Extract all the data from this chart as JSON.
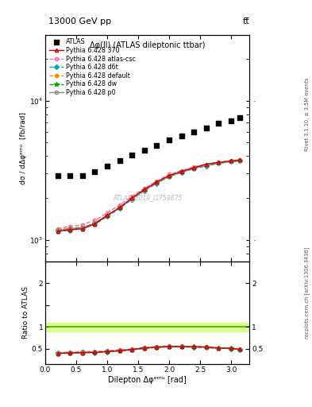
{
  "title_top": "13000 GeV pp",
  "title_right": "tt̅",
  "plot_title": "Δφ(ll) (ATLAS dileptonic ttbar)",
  "xlabel": "Dilepton Δφᵉᵐᵘ [rad]",
  "ylabel": "dσ / dΔφᵉᵐᵘ  [fb/rad]",
  "ylabel_ratio": "Ratio to ATLAS",
  "right_label_top": "Rivet 3.1.10, ≥ 3.5M events",
  "right_label_bottom": "mcplots.cern.ch [arXiv:1306.3436]",
  "watermark": "ATLAS_2019_I1759875",
  "atlas_x": [
    0.2,
    0.4,
    0.6,
    0.8,
    1.0,
    1.2,
    1.4,
    1.6,
    1.8,
    2.0,
    2.2,
    2.4,
    2.6,
    2.8,
    3.0,
    3.14
  ],
  "atlas_y": [
    2900,
    2900,
    2900,
    3100,
    3400,
    3700,
    4100,
    4400,
    4800,
    5200,
    5600,
    6000,
    6400,
    6900,
    7200,
    7600
  ],
  "py370_y": [
    1150,
    1180,
    1200,
    1300,
    1500,
    1700,
    2000,
    2300,
    2600,
    2900,
    3100,
    3300,
    3500,
    3600,
    3700,
    3750
  ],
  "py_atlas_y": [
    1200,
    1250,
    1280,
    1380,
    1560,
    1780,
    2050,
    2350,
    2650,
    2950,
    3150,
    3350,
    3500,
    3620,
    3700,
    3750
  ],
  "py_d6t_y": [
    1150,
    1170,
    1200,
    1290,
    1470,
    1680,
    1950,
    2250,
    2550,
    2850,
    3050,
    3250,
    3400,
    3550,
    3650,
    3700
  ],
  "py_default_y": [
    1180,
    1210,
    1230,
    1320,
    1500,
    1710,
    1980,
    2280,
    2580,
    2880,
    3080,
    3280,
    3430,
    3570,
    3660,
    3710
  ],
  "py_dw_y": [
    1160,
    1190,
    1215,
    1305,
    1490,
    1700,
    1970,
    2270,
    2570,
    2870,
    3070,
    3270,
    3420,
    3560,
    3660,
    3710
  ],
  "py_p0_y": [
    1170,
    1200,
    1220,
    1310,
    1490,
    1700,
    1970,
    2270,
    2570,
    2870,
    3070,
    3270,
    3420,
    3560,
    3660,
    3710
  ],
  "color_370": "#cc0000",
  "color_atlas_csc": "#ff69b4",
  "color_d6t": "#00aaaa",
  "color_default": "#ff8800",
  "color_dw": "#00aa00",
  "color_p0": "#888888",
  "ylim_main": [
    700,
    30000
  ],
  "ylim_ratio": [
    0.15,
    2.5
  ],
  "xlim": [
    0.0,
    3.3
  ],
  "yticks_ratio": [
    0.5,
    1.0,
    1.5,
    2.0
  ],
  "ytick_ratio_labels": [
    "0.5",
    "1",
    "",
    "2"
  ]
}
